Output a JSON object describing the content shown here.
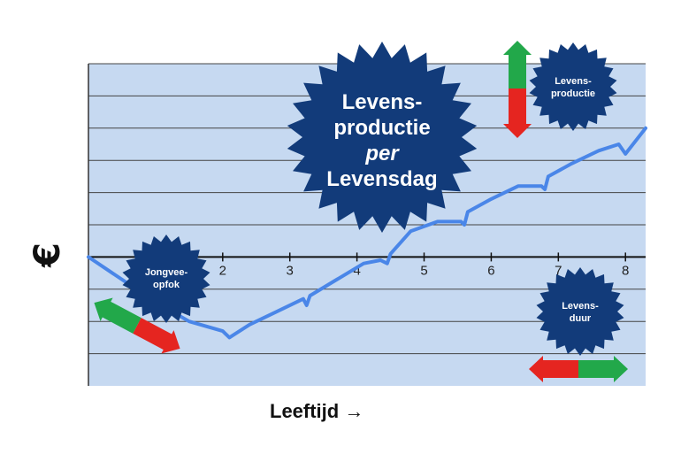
{
  "chart_data": {
    "type": "line",
    "title": "",
    "xlabel": "Leeftijd →",
    "ylabel": "€",
    "xlim": [
      0,
      8.3
    ],
    "ylim": [
      -4,
      6
    ],
    "x_ticks": [
      "2",
      "3",
      "4",
      "5",
      "6",
      "7",
      "8"
    ],
    "grid": true,
    "series": [
      {
        "x": [
          0,
          0.5,
          1.0,
          1.5,
          2.0,
          2.1,
          2.4,
          2.8,
          3.2,
          3.25,
          3.3,
          3.7,
          4.1,
          4.35,
          4.45,
          4.5,
          4.8,
          5.2,
          5.55,
          5.6,
          5.65,
          6.0,
          6.4,
          6.75,
          6.8,
          6.85,
          7.2,
          7.6,
          7.9,
          8.0,
          8.3
        ],
        "y": [
          0,
          -0.7,
          -1.4,
          -2.0,
          -2.3,
          -2.5,
          -2.1,
          -1.7,
          -1.3,
          -1.5,
          -1.2,
          -0.7,
          -0.2,
          -0.1,
          -0.2,
          0.1,
          0.8,
          1.1,
          1.1,
          1.0,
          1.4,
          1.8,
          2.2,
          2.2,
          2.1,
          2.5,
          2.9,
          3.3,
          3.5,
          3.2,
          4.0
        ]
      }
    ],
    "annotations": {
      "center": [
        "Levens-",
        "productie",
        "per",
        "Levensdag"
      ],
      "top_right": [
        "Levens-",
        "productie"
      ],
      "left": [
        "Jongvee-",
        "opfok"
      ],
      "bottom_right": [
        "Levens-",
        "duur"
      ]
    }
  },
  "colors": {
    "plot_bg": "#c6d9f1",
    "line": "#4a86e8",
    "badge": "#123b7a",
    "green": "#22a84a",
    "red": "#e52520"
  }
}
